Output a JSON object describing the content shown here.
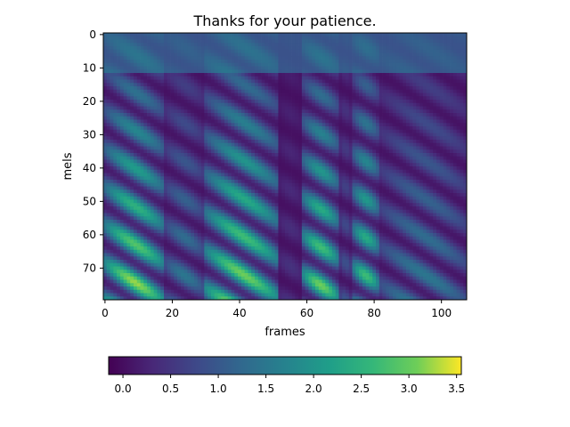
{
  "chart_data": {
    "type": "heatmap",
    "title": "Thanks for your patience.",
    "xlabel": "frames",
    "ylabel": "mels",
    "n_frames": 108,
    "n_mels": 80,
    "xlim": [
      -0.5,
      107.5
    ],
    "ylim": [
      79.5,
      -0.5
    ],
    "x_ticks": [
      0,
      20,
      40,
      60,
      80,
      100
    ],
    "y_ticks": [
      0,
      10,
      20,
      30,
      40,
      50,
      60,
      70
    ],
    "colormap": "viridis",
    "color_range": [
      -0.15,
      3.55
    ],
    "colorbar": {
      "orientation": "horizontal",
      "placement": "bottom",
      "ticks": [
        0.0,
        0.5,
        1.0,
        1.5,
        2.0,
        2.5,
        3.0,
        3.5
      ],
      "tick_labels": [
        "0.0",
        "0.5",
        "1.0",
        "1.5",
        "2.0",
        "2.5",
        "3.0",
        "3.5"
      ]
    },
    "segments": [
      {
        "start": 0,
        "end": 18,
        "peak": 3.4
      },
      {
        "start": 18,
        "end": 30,
        "peak": 1.6
      },
      {
        "start": 30,
        "end": 52,
        "peak": 3.3
      },
      {
        "start": 52,
        "end": 59,
        "peak": 0.5
      },
      {
        "start": 59,
        "end": 70,
        "peak": 3.2
      },
      {
        "start": 70,
        "end": 74,
        "peak": 1.0
      },
      {
        "start": 74,
        "end": 82,
        "peak": 2.9
      },
      {
        "start": 82,
        "end": 108,
        "peak": 1.6
      }
    ]
  }
}
